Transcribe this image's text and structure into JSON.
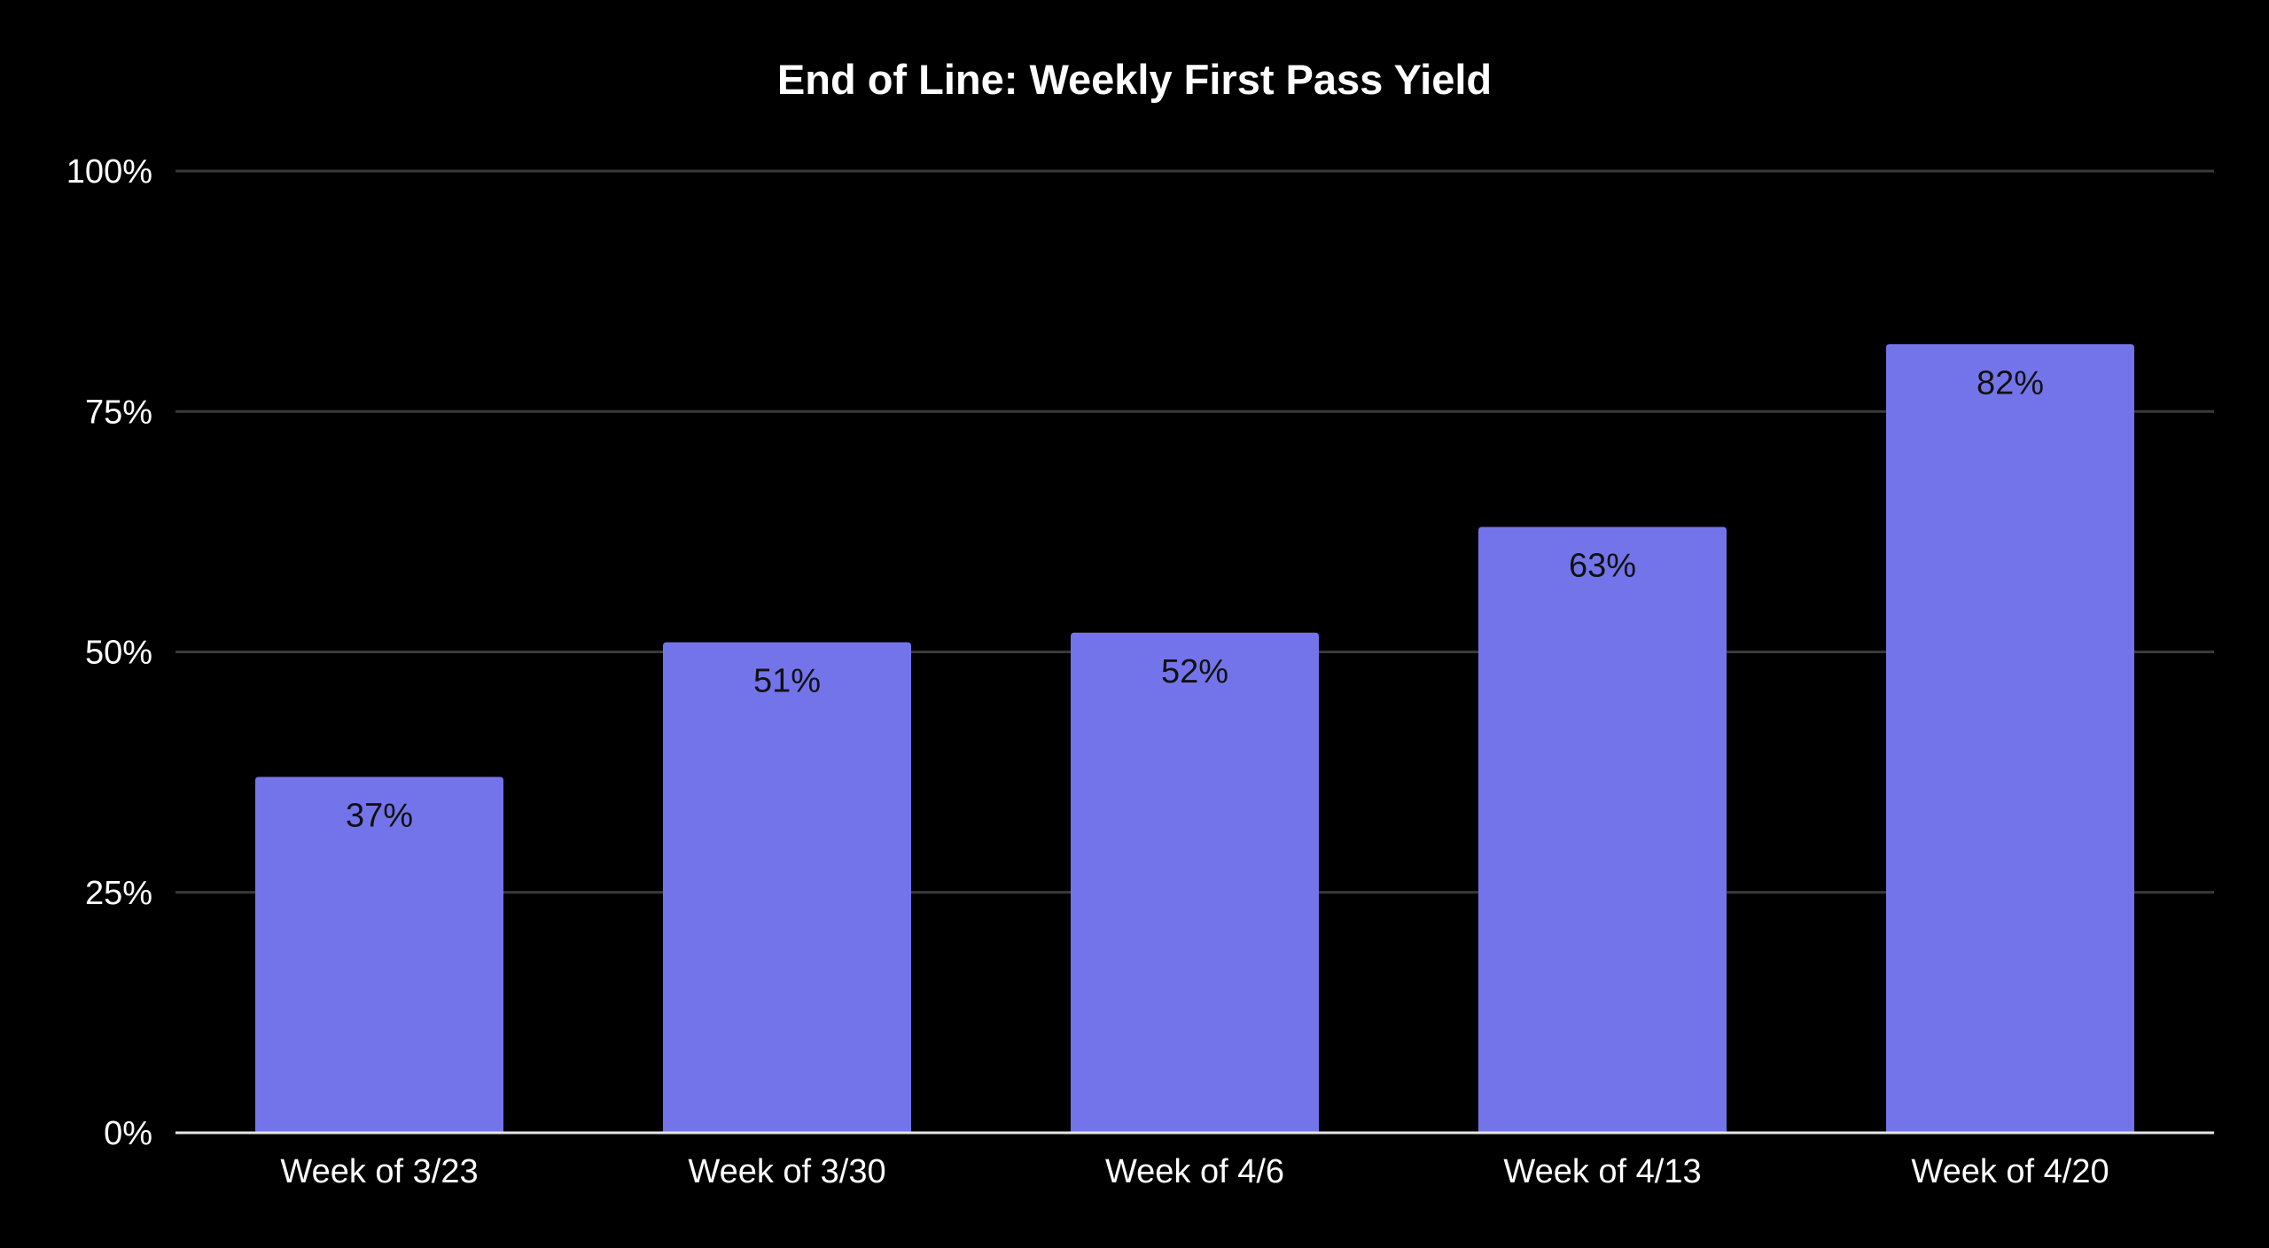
{
  "chart_data": {
    "type": "bar",
    "title": "End of Line: Weekly First Pass Yield",
    "xlabel": "",
    "ylabel": "",
    "categories": [
      "Week of 3/23",
      "Week of 3/30",
      "Week of 4/6",
      "Week of 4/13",
      "Week of 4/20"
    ],
    "values": [
      37,
      51,
      52,
      63,
      82
    ],
    "data_labels": [
      "37%",
      "51%",
      "52%",
      "63%",
      "82%"
    ],
    "ylim": [
      0,
      100
    ],
    "yticks": [
      0,
      25,
      50,
      75,
      100
    ],
    "ytick_labels": [
      "0%",
      "25%",
      "50%",
      "75%",
      "100%"
    ],
    "grid": true,
    "legend": "none",
    "colors": {
      "background": "#000000",
      "bar": "#7474EA",
      "grid": "#3a3a3a",
      "axis": "#e6e6e6",
      "text": "#ffffff",
      "data_label": "#111111"
    }
  }
}
